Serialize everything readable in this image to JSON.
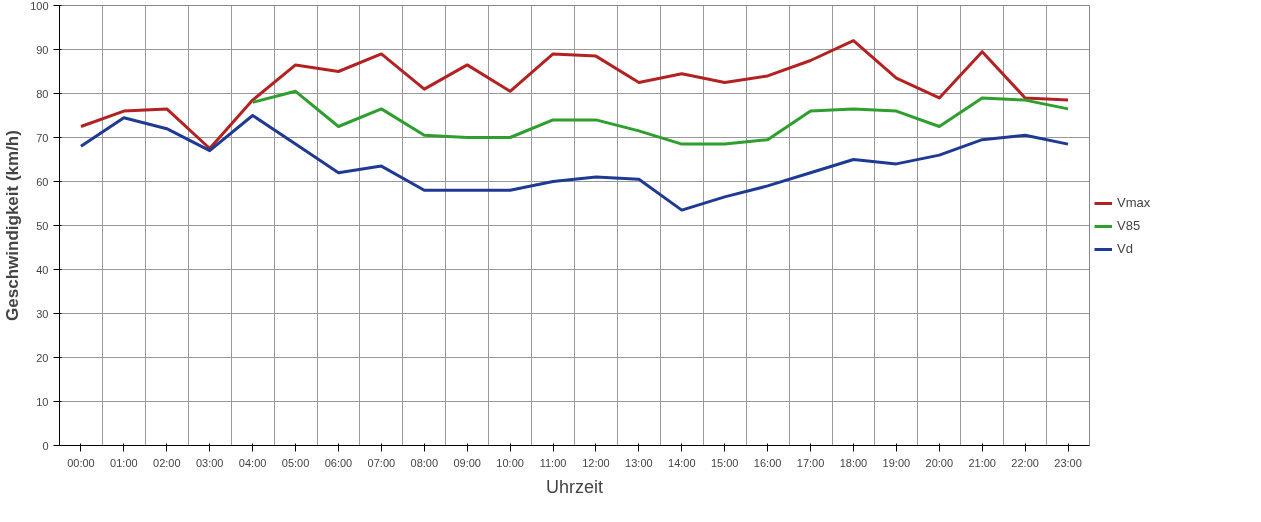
{
  "chart_data": {
    "type": "line",
    "xlabel": "Uhrzeit",
    "ylabel": "Geschwindigkeit (km/h)",
    "categories": [
      "00:00",
      "01:00",
      "02:00",
      "03:00",
      "04:00",
      "05:00",
      "06:00",
      "07:00",
      "08:00",
      "09:00",
      "10:00",
      "11:00",
      "12:00",
      "13:00",
      "14:00",
      "15:00",
      "16:00",
      "17:00",
      "18:00",
      "19:00",
      "20:00",
      "21:00",
      "22:00",
      "23:00"
    ],
    "series": [
      {
        "name": "Vmax",
        "color": "#b22222",
        "values": [
          72.5,
          76,
          76.5,
          67.5,
          78.5,
          86.5,
          85,
          89,
          81,
          86.5,
          80.5,
          89,
          88.5,
          82.5,
          84.5,
          82.5,
          84,
          87.5,
          92,
          83.5,
          79,
          89.5,
          79,
          78.5
        ]
      },
      {
        "name": "V85",
        "color": "#2e9e2e",
        "values": [
          null,
          null,
          null,
          null,
          78,
          80.5,
          72.5,
          76.5,
          70.5,
          70,
          70,
          74,
          74,
          71.5,
          68.5,
          68.5,
          69.5,
          76,
          76.5,
          76,
          72.5,
          79,
          78.5,
          76.5
        ]
      },
      {
        "name": "Vd",
        "color": "#1f3a93",
        "values": [
          68,
          74.5,
          72,
          67,
          75,
          68.5,
          62,
          63.5,
          58,
          58,
          58,
          60,
          61,
          60.5,
          53.5,
          56.5,
          59,
          62,
          65,
          64,
          66,
          69.5,
          70.5,
          68.5
        ]
      }
    ],
    "ylim": [
      0,
      100
    ],
    "yticks": [
      0,
      10,
      20,
      30,
      40,
      50,
      60,
      70,
      80,
      90,
      100
    ],
    "grid": true,
    "legend": "right",
    "marker": "none",
    "line_style": "solid"
  }
}
